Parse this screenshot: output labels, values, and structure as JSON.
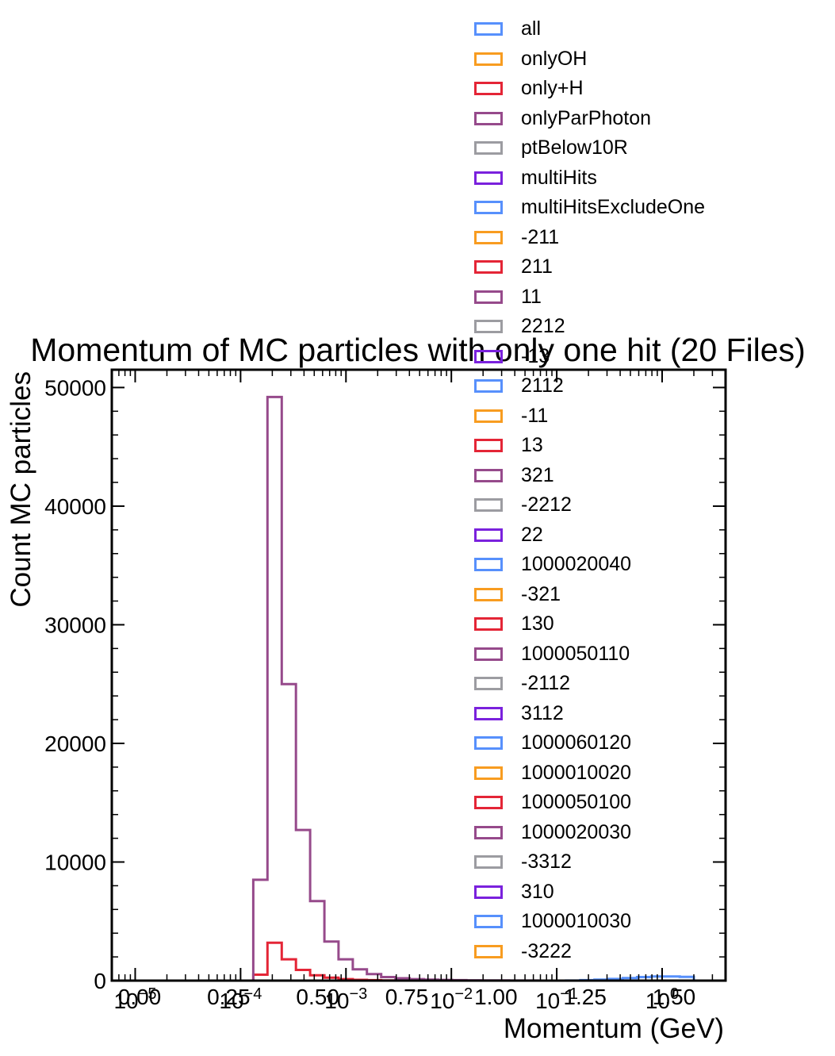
{
  "chart_data": {
    "type": "histogram",
    "title": "Momentum of MC particles with only one hit (20 Files)",
    "xlabel": "Momentum (GeV)",
    "ylabel": "Count MC particles",
    "x_scale": "log",
    "xlim": [
      6e-06,
      4
    ],
    "ylim": [
      0,
      51500
    ],
    "y_ticks": [
      0,
      10000,
      20000,
      30000,
      40000,
      50000
    ],
    "y_tick_labels": [
      "0",
      "10000",
      "20000",
      "30000",
      "40000",
      "50000"
    ],
    "x_log_ticks": [
      1e-05,
      0.0001,
      0.001,
      0.01,
      0.1,
      1
    ],
    "x_log_tick_labels": [
      "10",
      "10",
      "10",
      "10",
      "10",
      "10"
    ],
    "x_log_tick_exponents": [
      "−5",
      "−4",
      "−3",
      "−2",
      "−1",
      "0"
    ],
    "x_linear_ticks": [
      "0.00",
      "0.25",
      "0.50",
      "0.75",
      "1.00",
      "1.25",
      "1.50"
    ],
    "legend_position": "upper-right",
    "bin_edges": [
      2.8e-05,
      3.8e-05,
      5.2e-05,
      7.1e-05,
      9.7e-05,
      0.000132,
      0.00018,
      0.000246,
      0.000335,
      0.000457,
      0.000624,
      0.00085,
      0.00116,
      0.00158,
      0.00216,
      0.00295,
      0.00402,
      0.00549,
      0.00749,
      0.0102,
      0.0139,
      0.019,
      0.0259,
      0.0354,
      0.0483,
      0.0658,
      0.0898,
      0.1226,
      0.1672,
      0.228,
      0.311,
      0.424,
      0.579,
      0.79,
      1.078,
      1.47,
      2.0
    ],
    "series": [
      {
        "name": "all",
        "color": "#5790fc",
        "values": [
          0,
          0,
          0,
          0,
          0,
          0,
          0,
          0,
          0,
          0,
          0,
          0,
          0,
          0,
          0,
          0,
          0,
          0,
          0,
          0,
          0,
          0,
          0,
          0,
          0,
          0,
          0,
          10,
          40,
          80,
          140,
          220,
          300,
          350,
          350,
          320
        ]
      },
      {
        "name": "onlyOH",
        "color": "#f89c20",
        "values": [
          0,
          0,
          0,
          0,
          0,
          0,
          0,
          0,
          0,
          0,
          0,
          0,
          0,
          0,
          0,
          0,
          0,
          0,
          0,
          0,
          0,
          0,
          0,
          0,
          0,
          0,
          0,
          0,
          0,
          0,
          0,
          0,
          0,
          0,
          0,
          0
        ]
      },
      {
        "name": "only+H",
        "color": "#e42536",
        "values": [
          0,
          0,
          0,
          0,
          0,
          500,
          3200,
          1800,
          900,
          450,
          250,
          130,
          70,
          40,
          20,
          10,
          5,
          0,
          0,
          0,
          0,
          0,
          0,
          0,
          0,
          0,
          0,
          0,
          0,
          0,
          0,
          0,
          0,
          0,
          0,
          0
        ]
      },
      {
        "name": "onlyParPhoton",
        "color": "#964a8b",
        "values": [
          0,
          0,
          0,
          0,
          0,
          8500,
          49200,
          25000,
          12700,
          6700,
          3300,
          1800,
          950,
          550,
          300,
          200,
          130,
          90,
          60,
          40,
          30,
          20,
          15,
          10,
          5,
          0,
          0,
          0,
          0,
          0,
          0,
          0,
          0,
          0,
          0,
          0
        ]
      },
      {
        "name": "ptBelow10R",
        "color": "#9c9ca1",
        "values": []
      },
      {
        "name": "multiHits",
        "color": "#7a21dd",
        "values": []
      },
      {
        "name": "multiHitsExcludeOne",
        "color": "#5790fc",
        "values": []
      },
      {
        "name": "-211",
        "color": "#f89c20",
        "values": []
      },
      {
        "name": "211",
        "color": "#e42536",
        "values": []
      },
      {
        "name": "11",
        "color": "#964a8b",
        "values": []
      },
      {
        "name": "2212",
        "color": "#9c9ca1",
        "values": []
      },
      {
        "name": "-13",
        "color": "#7a21dd",
        "values": []
      },
      {
        "name": "2112",
        "color": "#5790fc",
        "values": []
      },
      {
        "name": "-11",
        "color": "#f89c20",
        "values": []
      },
      {
        "name": "13",
        "color": "#e42536",
        "values": []
      },
      {
        "name": "321",
        "color": "#964a8b",
        "values": []
      },
      {
        "name": "-2212",
        "color": "#9c9ca1",
        "values": []
      },
      {
        "name": "22",
        "color": "#7a21dd",
        "values": []
      },
      {
        "name": "1000020040",
        "color": "#5790fc",
        "values": []
      },
      {
        "name": "-321",
        "color": "#f89c20",
        "values": []
      },
      {
        "name": "130",
        "color": "#e42536",
        "values": []
      },
      {
        "name": "1000050110",
        "color": "#964a8b",
        "values": []
      },
      {
        "name": "-2112",
        "color": "#9c9ca1",
        "values": []
      },
      {
        "name": "3112",
        "color": "#7a21dd",
        "values": []
      },
      {
        "name": "1000060120",
        "color": "#5790fc",
        "values": []
      },
      {
        "name": "1000010020",
        "color": "#f89c20",
        "values": []
      },
      {
        "name": "1000050100",
        "color": "#e42536",
        "values": []
      },
      {
        "name": "1000020030",
        "color": "#964a8b",
        "values": []
      },
      {
        "name": "-3312",
        "color": "#9c9ca1",
        "values": []
      },
      {
        "name": "310",
        "color": "#7a21dd",
        "values": []
      },
      {
        "name": "1000010030",
        "color": "#5790fc",
        "values": []
      },
      {
        "name": "-3222",
        "color": "#f89c20",
        "values": []
      }
    ]
  }
}
